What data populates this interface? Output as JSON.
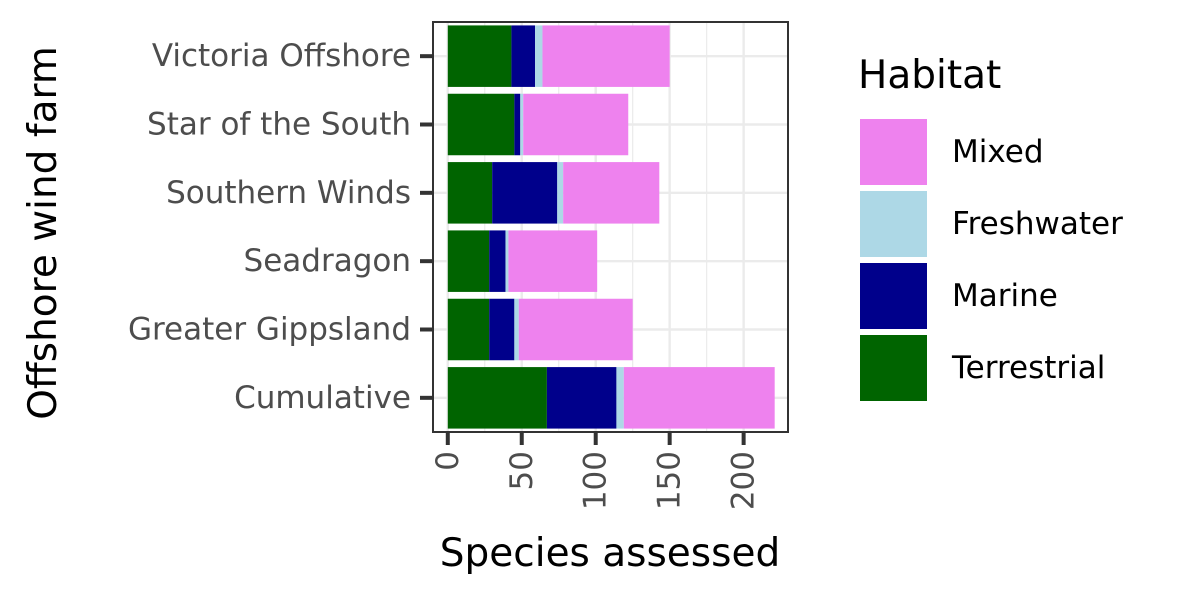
{
  "chart_data": {
    "type": "bar",
    "orientation": "horizontal",
    "stacked": true,
    "categories": [
      "Cumulative",
      "Greater Gippsland",
      "Seadragon",
      "Southern Winds",
      "Star of the South",
      "Victoria Offshore"
    ],
    "series": [
      {
        "name": "Terrestrial",
        "color": "#006400",
        "values": [
          67,
          28,
          28,
          30,
          45,
          43
        ]
      },
      {
        "name": "Marine",
        "color": "#00008B",
        "values": [
          47,
          17,
          11,
          44,
          4,
          16
        ]
      },
      {
        "name": "Freshwater",
        "color": "#ADD8E6",
        "values": [
          5,
          3,
          2,
          4,
          2,
          5
        ]
      },
      {
        "name": "Mixed",
        "color": "#EE82EE",
        "values": [
          102,
          77,
          60,
          65,
          71,
          86
        ]
      }
    ],
    "xticks": [
      "0",
      "50",
      "100",
      "150",
      "200"
    ],
    "xtick_values": [
      0,
      50,
      100,
      150,
      200
    ],
    "xlim": [
      -10,
      230
    ],
    "xlabel": "Species assessed",
    "ylabel": "Offshore wind farm",
    "grid": true,
    "legend": {
      "title": "Habitat",
      "position": "right",
      "order": [
        "Mixed",
        "Freshwater",
        "Marine",
        "Terrestrial"
      ]
    }
  }
}
